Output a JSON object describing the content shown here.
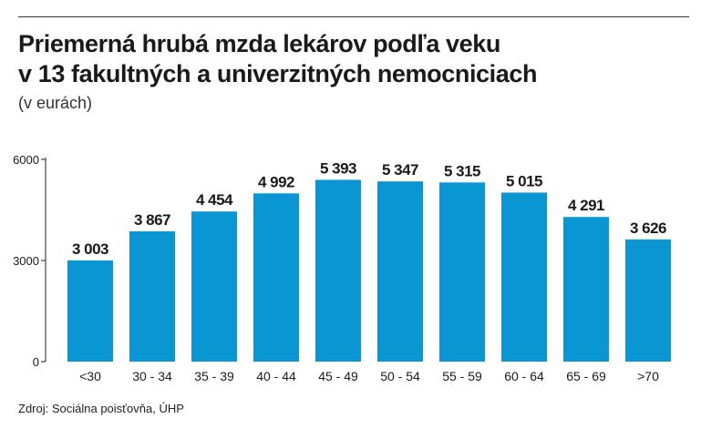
{
  "header": {
    "title_line1": "Priemerná hrubá mzda lekárov podľa veku",
    "title_line2": "v 13 fakultných a univerzitných nemocniciach",
    "subtitle": "(v eurách)"
  },
  "footer": {
    "source": "Zdroj: Sociálna poisťovňa, ÚHP"
  },
  "colors": {
    "bar": "#0a96d2",
    "axis": "#222222",
    "text": "#1a1a1a"
  },
  "chart_data": {
    "type": "bar",
    "title": "Priemerná hrubá mzda lekárov podľa veku v 13 fakultných a univerzitných nemocniciach",
    "xlabel": "",
    "ylabel": "(v eurách)",
    "ylim": [
      0,
      6000
    ],
    "yticks": [
      0,
      3000,
      6000
    ],
    "ytick_labels": [
      "0",
      "3000",
      "6000"
    ],
    "categories": [
      "<30",
      "30 - 34",
      "35 - 39",
      "40 - 44",
      "45 - 49",
      "50 - 54",
      "55 - 59",
      "60 - 64",
      "65 - 69",
      ">70"
    ],
    "values": [
      3003,
      3867,
      4454,
      4992,
      5393,
      5347,
      5315,
      5015,
      4291,
      3626
    ],
    "value_labels": [
      "3 003",
      "3 867",
      "4 454",
      "4 992",
      "5 393",
      "5 347",
      "5 315",
      "5 015",
      "4 291",
      "3 626"
    ],
    "grid": false,
    "legend": "none"
  }
}
